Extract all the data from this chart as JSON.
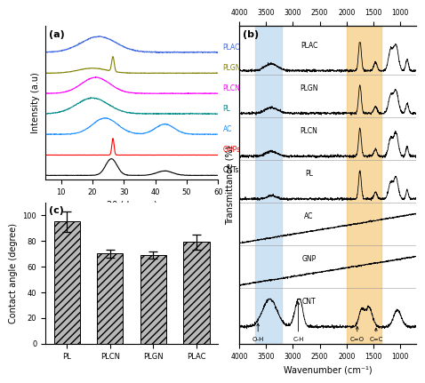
{
  "panel_a": {
    "title": "(a)",
    "xlabel": "2θ (degree)",
    "ylabel": "Intensity (a.u)",
    "xlim": [
      5,
      60
    ],
    "xticks": [
      10,
      20,
      30,
      40,
      50,
      60
    ],
    "labels": [
      "PLAC",
      "PLGN",
      "PLCN",
      "PL",
      "AC",
      "GNPs",
      "CNTs"
    ],
    "colors": [
      "#4169E1",
      "#808000",
      "#FF00FF",
      "#008B8B",
      "#1E90FF",
      "#FF0000",
      "#000000"
    ]
  },
  "panel_b": {
    "title": "(b)",
    "xlabel": "Wavenumber (cm⁻¹)",
    "ylabel": "Transmittance (%)",
    "xlim": [
      4000,
      700
    ],
    "xticks": [
      4000,
      3500,
      3000,
      2500,
      2000,
      1500,
      1000
    ],
    "labels": [
      "PLAC",
      "PLGN",
      "PLCN",
      "PL",
      "AC",
      "GNP",
      "CNT"
    ],
    "blue_region": [
      3700,
      3200
    ],
    "orange_region": [
      2000,
      1350
    ],
    "annotations": [
      {
        "text": "O-H",
        "x": 3650
      },
      {
        "text": "C-H",
        "x": 2900
      },
      {
        "text": "C=O",
        "x": 1800
      },
      {
        "text": "C=C",
        "x": 1450
      }
    ]
  },
  "panel_c": {
    "title": "(c)",
    "ylabel": "Contact angle (degree)",
    "categories": [
      "PL",
      "PLCN",
      "PLGN",
      "PLAC"
    ],
    "values": [
      95,
      70,
      69,
      79
    ],
    "errors": [
      8,
      3,
      3,
      6
    ],
    "ylim": [
      0,
      110
    ],
    "yticks": [
      0,
      20,
      40,
      60,
      80,
      100
    ]
  },
  "bg_color": "#ffffff"
}
